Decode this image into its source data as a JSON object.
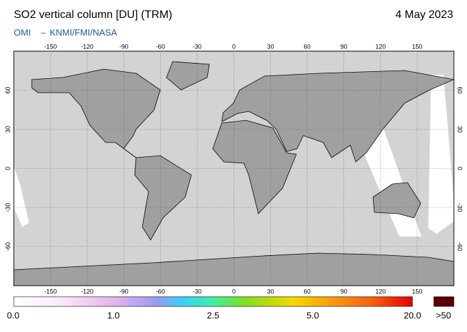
{
  "header": {
    "title": "SO2 vertical column [DU] (TRM)",
    "date": "4 May 2023",
    "credit_left": "OMI",
    "credit_separator": "–",
    "credit_right": "KNMI/FMI/NASA"
  },
  "map": {
    "xlim": [
      -180,
      180
    ],
    "ylim": [
      -90,
      90
    ],
    "lon_ticks": [
      -150,
      -120,
      -90,
      -60,
      -30,
      0,
      30,
      60,
      90,
      120,
      150
    ],
    "lat_ticks": [
      60,
      30,
      0,
      -30,
      -60
    ]
  },
  "colorbar": {
    "labels": [
      "0.0",
      "1.0",
      "2.5",
      "5.0",
      "20.0"
    ],
    "overflow_label": ">50"
  }
}
